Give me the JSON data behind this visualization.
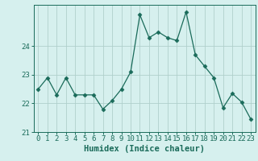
{
  "x": [
    0,
    1,
    2,
    3,
    4,
    5,
    6,
    7,
    8,
    9,
    10,
    11,
    12,
    13,
    14,
    15,
    16,
    17,
    18,
    19,
    20,
    21,
    22,
    23
  ],
  "y": [
    22.5,
    22.9,
    22.3,
    22.9,
    22.3,
    22.3,
    22.3,
    21.8,
    22.1,
    22.5,
    23.1,
    25.1,
    24.3,
    24.5,
    24.3,
    24.2,
    25.2,
    23.7,
    23.3,
    22.9,
    21.85,
    22.35,
    22.05,
    21.45
  ],
  "line_color": "#1a6b5a",
  "marker": "D",
  "marker_size": 2.5,
  "bg_color": "#d6f0ee",
  "grid_color": "#b0d0cc",
  "xlabel": "Humidex (Indice chaleur)",
  "xlim": [
    -0.5,
    23.5
  ],
  "ylim": [
    21.0,
    25.45
  ],
  "yticks": [
    21,
    22,
    23,
    24
  ],
  "xtick_labels": [
    "0",
    "1",
    "2",
    "3",
    "4",
    "5",
    "6",
    "7",
    "8",
    "9",
    "10",
    "11",
    "12",
    "13",
    "14",
    "15",
    "16",
    "17",
    "18",
    "19",
    "20",
    "21",
    "22",
    "23"
  ],
  "xlabel_fontsize": 7.5,
  "tick_fontsize": 6.5,
  "tick_color": "#1a6b5a"
}
